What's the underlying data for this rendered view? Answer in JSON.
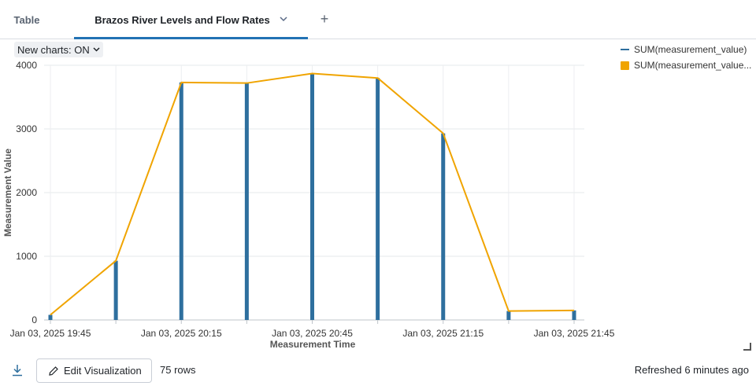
{
  "tabs": {
    "table_label": "Table",
    "active_label": "Brazos River Levels and Flow Rates",
    "add_symbol": "+"
  },
  "toolbar": {
    "new_charts_label": "New charts: ON"
  },
  "legend": {
    "items": [
      "SUM(measurement_value)",
      "SUM(measurement_value..."
    ]
  },
  "footer": {
    "edit_label": "Edit Visualization",
    "row_count": "75 rows",
    "refreshed": "Refreshed 6 minutes ago"
  },
  "icons": {
    "download": "download-icon",
    "edit": "pencil-icon",
    "resize": "resize-handle-icon",
    "tab_menu": "chevron-down-icon"
  },
  "colors": {
    "bar": "#2e6f9e",
    "line": "#f0a400",
    "accent": "#2272b4"
  },
  "chart_data": {
    "type": "bar",
    "xlabel": "Measurement Time",
    "ylabel": "Measurement Value",
    "ylim": [
      0,
      4000
    ],
    "yticks": [
      0,
      1000,
      2000,
      3000,
      4000
    ],
    "xticks": [
      "Jan 03, 2025 19:45",
      "Jan 03, 2025 20:15",
      "Jan 03, 2025 20:45",
      "Jan 03, 2025 21:15",
      "Jan 03, 2025 21:45"
    ],
    "x": [
      "19:45",
      "20:00",
      "20:15",
      "20:30",
      "20:45",
      "21:00",
      "21:15",
      "21:30",
      "21:45"
    ],
    "grid": true,
    "legend_position": "top-right",
    "series": [
      {
        "name": "SUM(measurement_value)",
        "type": "bar",
        "values": [
          80,
          930,
          3730,
          3720,
          3870,
          3800,
          2930,
          140,
          150
        ]
      },
      {
        "name": "SUM(measurement_value...",
        "type": "line",
        "values": [
          80,
          930,
          3730,
          3720,
          3870,
          3800,
          2930,
          140,
          150
        ]
      }
    ]
  }
}
